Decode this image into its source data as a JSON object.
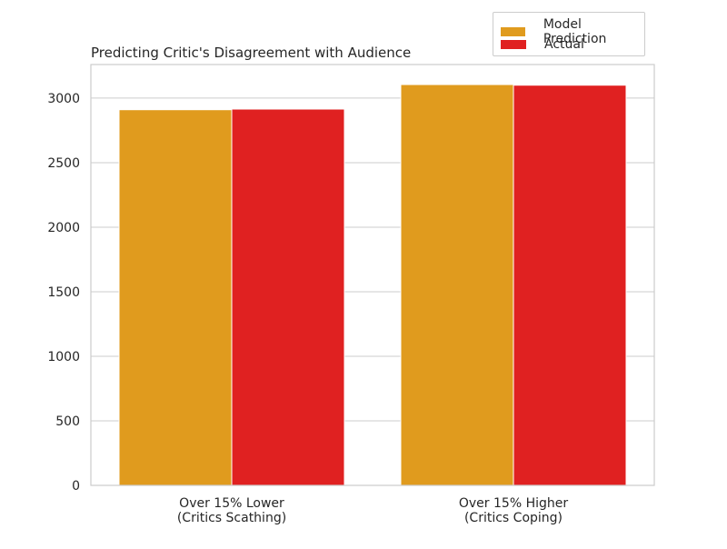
{
  "chart_data": {
    "type": "bar",
    "title": "Predicting Critic's Disagreement with Audience",
    "xlabel": "",
    "ylabel": "",
    "categories": [
      "Over 15% Lower\n(Critics Scathing)",
      "Over 15% Higher\n(Critics Coping)"
    ],
    "series": [
      {
        "name": "Model Prediction",
        "color": "#e09b1e",
        "values": [
          2910,
          3105
        ]
      },
      {
        "name": "Actual",
        "color": "#e02121",
        "values": [
          2915,
          3100
        ]
      }
    ],
    "ylim": [
      0,
      3260
    ],
    "yticks": [
      0,
      500,
      1000,
      1500,
      2000,
      2500,
      3000
    ],
    "grid": true,
    "legend_position": "top-right"
  }
}
